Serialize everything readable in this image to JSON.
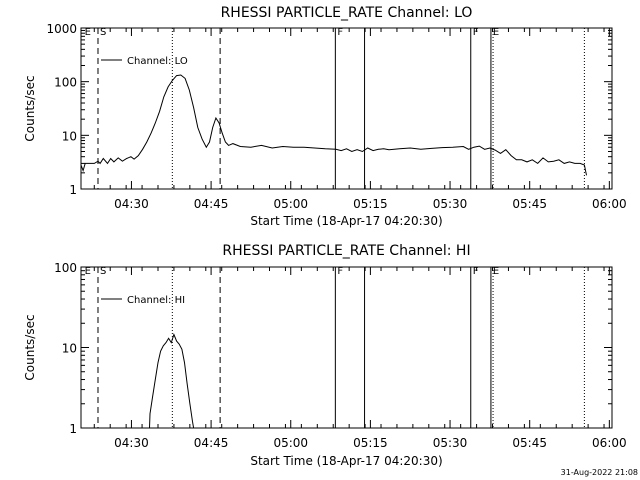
{
  "footer": "31-Aug-2022 21:08",
  "chart_data": [
    {
      "type": "line",
      "title": "RHESSI PARTICLE_RATE Channel: LO",
      "xlabel": "Start Time (18-Apr-17 04:20:30)",
      "ylabel": "Counts/sec",
      "xlim": [
        0,
        100
      ],
      "ylim": [
        1,
        1000
      ],
      "yscale": "log",
      "yticks": [
        {
          "value": 1,
          "label": "1"
        },
        {
          "value": 10,
          "label": "10"
        },
        {
          "value": 100,
          "label": "100"
        },
        {
          "value": 1000,
          "label": "1000"
        }
      ],
      "xticks": [
        {
          "value": 9.5,
          "label": "04:30"
        },
        {
          "value": 24.5,
          "label": "04:45"
        },
        {
          "value": 39.5,
          "label": "05:00"
        },
        {
          "value": 54.5,
          "label": "05:15"
        },
        {
          "value": 69.5,
          "label": "05:30"
        },
        {
          "value": 84.5,
          "label": "05:45"
        },
        {
          "value": 99.5,
          "label": "06:00"
        }
      ],
      "legend": "Channel: LO",
      "legend_position": "top-left",
      "markers": [
        {
          "label": "E",
          "x": 0.3,
          "style": "text"
        },
        {
          "label": "S",
          "x": 3.2,
          "style": "dashed"
        },
        {
          "label": "",
          "x": 17.2,
          "style": "dotted"
        },
        {
          "label": "",
          "x": 26.2,
          "style": "dashed"
        },
        {
          "label": "F",
          "x": 47.9,
          "style": "solid"
        },
        {
          "label": "",
          "x": 53.4,
          "style": "solid"
        },
        {
          "label": "F",
          "x": 73.4,
          "style": "solid"
        },
        {
          "label": "E",
          "x": 77.2,
          "style": "solid"
        },
        {
          "label": "",
          "x": 77.6,
          "style": "dotted"
        },
        {
          "label": "",
          "x": 94.8,
          "style": "dotted"
        }
      ],
      "series": [
        {
          "name": "Channel: LO",
          "x": [
            0,
            0.4,
            0.8,
            1.5,
            2.5,
            3.2,
            3.6,
            4.2,
            5,
            5.6,
            6.2,
            7,
            7.8,
            8.6,
            9.4,
            10,
            10.8,
            11.6,
            12.4,
            13.2,
            14,
            14.8,
            15.6,
            16.4,
            17.2,
            18,
            18.8,
            19.6,
            20.4,
            21.2,
            22,
            22.8,
            23.6,
            24.2,
            24.8,
            25.4,
            26,
            26.6,
            27.2,
            27.8,
            28.6,
            30,
            32,
            34,
            36,
            38,
            40,
            42,
            44,
            46,
            48,
            49,
            50,
            51,
            52,
            53,
            54,
            55,
            56,
            57,
            58,
            60,
            62,
            64,
            66,
            68,
            70,
            72,
            73,
            74,
            75,
            76,
            77,
            78,
            79,
            80,
            81,
            82,
            83,
            84,
            85,
            86,
            87,
            88,
            89,
            90,
            91,
            92,
            93,
            94,
            94.8,
            95.2
          ],
          "y": [
            2.8,
            2.2,
            3.0,
            3.0,
            3.0,
            3.3,
            3.0,
            3.7,
            3.0,
            3.7,
            3.2,
            3.8,
            3.3,
            3.7,
            4.0,
            3.6,
            4.2,
            5.5,
            7.5,
            11,
            17,
            28,
            52,
            80,
            105,
            130,
            133,
            115,
            70,
            33,
            14,
            8.5,
            6.0,
            7.5,
            14,
            21,
            17,
            11,
            7.5,
            6.5,
            7.0,
            6.2,
            6.0,
            6.5,
            5.8,
            6.2,
            6.0,
            6.0,
            5.8,
            5.6,
            5.5,
            5.2,
            5.6,
            5.0,
            5.4,
            5.0,
            5.8,
            5.2,
            5.5,
            5.6,
            5.4,
            5.6,
            5.8,
            5.5,
            5.7,
            5.9,
            6.0,
            6.2,
            5.5,
            6.0,
            6.3,
            5.5,
            5.8,
            5.3,
            4.6,
            5.4,
            4.2,
            3.5,
            3.5,
            3.2,
            3.5,
            3.0,
            3.8,
            3.2,
            3.3,
            3.5,
            3.0,
            3.2,
            3.0,
            3.0,
            2.8,
            1.8
          ]
        }
      ]
    },
    {
      "type": "line",
      "title": "RHESSI PARTICLE_RATE Channel: HI",
      "xlabel": "Start Time (18-Apr-17 04:20:30)",
      "ylabel": "Counts/sec",
      "xlim": [
        0,
        100
      ],
      "ylim": [
        1,
        100
      ],
      "yscale": "log",
      "yticks": [
        {
          "value": 1,
          "label": "1"
        },
        {
          "value": 10,
          "label": "10"
        },
        {
          "value": 100,
          "label": "100"
        }
      ],
      "xticks": [
        {
          "value": 9.5,
          "label": "04:30"
        },
        {
          "value": 24.5,
          "label": "04:45"
        },
        {
          "value": 39.5,
          "label": "05:00"
        },
        {
          "value": 54.5,
          "label": "05:15"
        },
        {
          "value": 69.5,
          "label": "05:30"
        },
        {
          "value": 84.5,
          "label": "05:45"
        },
        {
          "value": 99.5,
          "label": "06:00"
        }
      ],
      "legend": "Channel: HI",
      "legend_position": "top-left",
      "markers": [
        {
          "label": "E",
          "x": 0.3,
          "style": "text"
        },
        {
          "label": "S",
          "x": 3.2,
          "style": "dashed"
        },
        {
          "label": "",
          "x": 17.2,
          "style": "dotted"
        },
        {
          "label": "",
          "x": 26.2,
          "style": "dashed"
        },
        {
          "label": "F",
          "x": 47.9,
          "style": "solid"
        },
        {
          "label": "",
          "x": 53.4,
          "style": "solid"
        },
        {
          "label": "F",
          "x": 73.4,
          "style": "solid"
        },
        {
          "label": "E",
          "x": 77.2,
          "style": "solid"
        },
        {
          "label": "",
          "x": 77.6,
          "style": "dotted"
        },
        {
          "label": "",
          "x": 94.8,
          "style": "dotted"
        }
      ],
      "series": [
        {
          "name": "Channel: HI",
          "x": [
            12.9,
            13.0,
            13.5,
            14.0,
            14.5,
            15.0,
            15.5,
            16.0,
            16.5,
            17.0,
            17.5,
            18.0,
            18.5,
            19.0,
            19.5,
            20.0,
            20.5,
            21.0,
            21.2
          ],
          "y": [
            1.0,
            1.5,
            2.5,
            4.0,
            6.5,
            9.0,
            10.5,
            11.5,
            13.0,
            11.5,
            14.5,
            12.0,
            11.0,
            9.5,
            6.5,
            3.5,
            2.0,
            1.2,
            1.0
          ]
        }
      ]
    }
  ]
}
